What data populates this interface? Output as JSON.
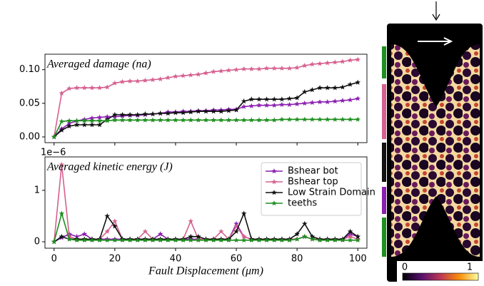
{
  "chart_data": [
    {
      "type": "line",
      "annotation": "Averaged damage (na)",
      "x": [
        0,
        2.5,
        5,
        7.5,
        10,
        12.5,
        15,
        17.5,
        20,
        22.5,
        25,
        27.5,
        30,
        32.5,
        35,
        37.5,
        40,
        42.5,
        45,
        47.5,
        50,
        52.5,
        55,
        57.5,
        60,
        62.5,
        65,
        67.5,
        70,
        72.5,
        75,
        77.5,
        80,
        82.5,
        85,
        87.5,
        90,
        92.5,
        95,
        97.5,
        100
      ],
      "series": [
        {
          "color": "#d6608f",
          "values": [
            0,
            0.065,
            0.072,
            0.073,
            0.073,
            0.073,
            0.073,
            0.074,
            0.08,
            0.082,
            0.083,
            0.083,
            0.084,
            0.085,
            0.086,
            0.088,
            0.09,
            0.091,
            0.092,
            0.093,
            0.095,
            0.097,
            0.098,
            0.099,
            0.1,
            0.101,
            0.101,
            0.101,
            0.102,
            0.102,
            0.102,
            0.102,
            0.103,
            0.106,
            0.108,
            0.109,
            0.11,
            0.111,
            0.112,
            0.114,
            0.115
          ]
        },
        {
          "color": "#8a1fb0",
          "values": [
            0,
            0.012,
            0.02,
            0.024,
            0.026,
            0.028,
            0.029,
            0.03,
            0.03,
            0.031,
            0.032,
            0.032,
            0.033,
            0.034,
            0.035,
            0.037,
            0.037,
            0.038,
            0.038,
            0.039,
            0.039,
            0.04,
            0.04,
            0.041,
            0.041,
            0.045,
            0.046,
            0.047,
            0.047,
            0.047,
            0.048,
            0.048,
            0.049,
            0.05,
            0.051,
            0.052,
            0.052,
            0.053,
            0.054,
            0.055,
            0.057
          ]
        },
        {
          "color": "#111111",
          "values": [
            0,
            0.01,
            0.016,
            0.018,
            0.018,
            0.018,
            0.018,
            0.026,
            0.033,
            0.033,
            0.033,
            0.033,
            0.034,
            0.034,
            0.035,
            0.035,
            0.036,
            0.036,
            0.037,
            0.038,
            0.038,
            0.038,
            0.038,
            0.039,
            0.04,
            0.053,
            0.056,
            0.056,
            0.056,
            0.056,
            0.056,
            0.057,
            0.058,
            0.067,
            0.07,
            0.073,
            0.073,
            0.073,
            0.074,
            0.078,
            0.081
          ]
        },
        {
          "color": "#1f8f1f",
          "values": [
            0,
            0.023,
            0.024,
            0.024,
            0.024,
            0.024,
            0.024,
            0.024,
            0.025,
            0.025,
            0.025,
            0.025,
            0.025,
            0.025,
            0.025,
            0.025,
            0.025,
            0.025,
            0.025,
            0.025,
            0.025,
            0.025,
            0.025,
            0.025,
            0.025,
            0.025,
            0.025,
            0.025,
            0.025,
            0.025,
            0.026,
            0.026,
            0.026,
            0.026,
            0.026,
            0.026,
            0.026,
            0.026,
            0.026,
            0.026,
            0.026
          ]
        }
      ],
      "xlim": [
        -3,
        103
      ],
      "ylim": [
        -0.0085,
        0.123
      ],
      "yticks": [
        {
          "value": 0,
          "label": "0.00"
        },
        {
          "value": 0.05,
          "label": "0.05"
        },
        {
          "value": 0.1,
          "label": "0.10"
        }
      ]
    },
    {
      "type": "line",
      "annotation": "Averaged kinetic energy (J)",
      "offset_text": "1e−6",
      "x_label": "Fault Displacement (μm)",
      "x": [
        0,
        2.5,
        5,
        7.5,
        10,
        12.5,
        15,
        17.5,
        20,
        22.5,
        25,
        27.5,
        30,
        32.5,
        35,
        37.5,
        40,
        42.5,
        45,
        47.5,
        50,
        52.5,
        55,
        57.5,
        60,
        62.5,
        65,
        67.5,
        70,
        72.5,
        75,
        77.5,
        80,
        82.5,
        85,
        87.5,
        90,
        92.5,
        95,
        97.5,
        100
      ],
      "series": [
        {
          "name": "Bshear bot",
          "color": "#8a1fb0",
          "values": [
            0,
            0.08,
            0.15,
            0.1,
            0.15,
            0.05,
            0.05,
            0.05,
            0.05,
            0.05,
            0.05,
            0.05,
            0.05,
            0.05,
            0.15,
            0.05,
            0.05,
            0.05,
            0.05,
            0.05,
            0.05,
            0.05,
            0.05,
            0.05,
            0.35,
            0.1,
            0.05,
            0.05,
            0.05,
            0.05,
            0.05,
            0.05,
            0.05,
            0.1,
            0.05,
            0.05,
            0.05,
            0.05,
            0.05,
            0.15,
            0.1
          ]
        },
        {
          "name": "Bshear top",
          "color": "#d6608f",
          "values": [
            0,
            1.5,
            0.1,
            0.05,
            0.05,
            0.05,
            0.05,
            0.2,
            0.4,
            0.05,
            0.05,
            0.05,
            0.2,
            0.05,
            0.05,
            0.05,
            0.05,
            0.05,
            0.4,
            0.05,
            0.05,
            0.05,
            0.2,
            0.05,
            0.3,
            0.1,
            0.05,
            0.05,
            0.05,
            0.05,
            0.05,
            0.05,
            0.05,
            0.1,
            0.05,
            0.05,
            0.05,
            0.05,
            0.05,
            0.1,
            0.05
          ]
        },
        {
          "name": "Low Strain Domain",
          "color": "#111111",
          "values": [
            0,
            0.1,
            0.05,
            0.05,
            0.05,
            0.05,
            0.05,
            0.5,
            0.3,
            0.05,
            0.05,
            0.05,
            0.05,
            0.05,
            0.05,
            0.05,
            0.05,
            0.05,
            0.1,
            0.1,
            0.05,
            0.05,
            0.05,
            0.05,
            0.2,
            0.55,
            0.05,
            0.05,
            0.05,
            0.05,
            0.05,
            0.05,
            0.15,
            0.35,
            0.1,
            0.05,
            0.05,
            0.05,
            0.05,
            0.2,
            0.1
          ]
        },
        {
          "name": "teeths",
          "color": "#1f8f1f",
          "values": [
            0,
            0.55,
            0.05,
            0.03,
            0.03,
            0.03,
            0.03,
            0.03,
            0.03,
            0.03,
            0.03,
            0.03,
            0.03,
            0.03,
            0.03,
            0.03,
            0.03,
            0.03,
            0.03,
            0.03,
            0.03,
            0.03,
            0.03,
            0.03,
            0.03,
            0.03,
            0.03,
            0.03,
            0.03,
            0.03,
            0.03,
            0.03,
            0.05,
            0.1,
            0.05,
            0.03,
            0.03,
            0.03,
            0.03,
            0.03,
            0.03
          ]
        }
      ],
      "xlim": [
        -3,
        103
      ],
      "ylim": [
        -0.125,
        1.65
      ],
      "xticks": [
        0,
        20,
        40,
        60,
        80,
        100
      ],
      "yticks": [
        0,
        1
      ],
      "legend": "upper right"
    }
  ],
  "image_panel": {
    "colorbar_ticks": [
      0,
      1
    ]
  }
}
